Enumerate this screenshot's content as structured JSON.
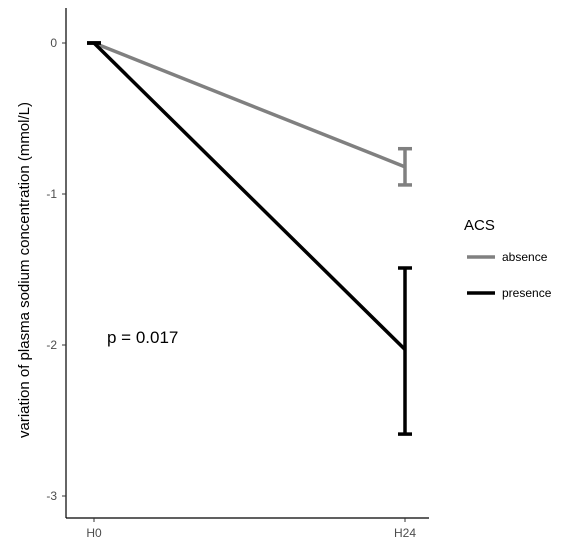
{
  "chart_data": {
    "type": "line",
    "x": [
      "H0",
      "H24"
    ],
    "ylabel": "variation of plasma sodium concentration  (mmol/L)",
    "ylim": [
      -3.15,
      0.2
    ],
    "yticks": [
      0,
      -1,
      -2,
      -3
    ],
    "ytick_labels": [
      "0",
      "-1",
      "-2",
      "-3"
    ],
    "grid": false,
    "legend": {
      "title": "ACS",
      "position": "right"
    },
    "series": [
      {
        "name": "absence",
        "color": "#808080",
        "values": [
          0,
          -0.82
        ],
        "error": [
          [
            0,
            0
          ],
          [
            -0.94,
            -0.7
          ]
        ]
      },
      {
        "name": "presence",
        "color": "#000000",
        "values": [
          0,
          -2.03
        ],
        "error": [
          [
            0,
            0
          ],
          [
            -2.59,
            -1.49
          ]
        ]
      }
    ],
    "annotation": "p = 0.017"
  }
}
